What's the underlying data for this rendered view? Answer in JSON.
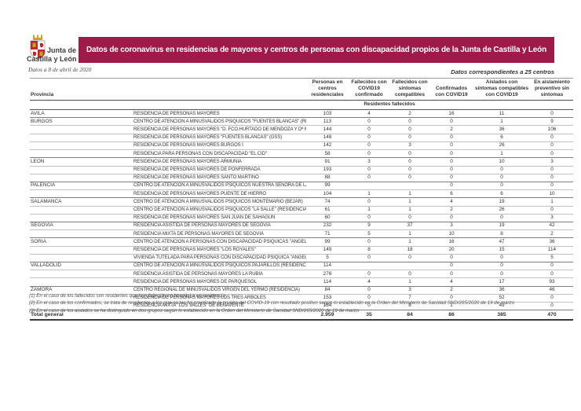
{
  "colors": {
    "banner_bg": "#9E1A49",
    "banner_text": "#FFFFFF",
    "crown_gold": "#C9A227",
    "shield_red": "#C0272D"
  },
  "header": {
    "logo_line1": "Junta de",
    "logo_line2": "Castilla y León",
    "banner": "Datos de coronavirus en residencias de mayores y centros de personas con discapacidad propios de la Junta de Castilla y León",
    "date_note": "Datos a 8 de abril de 2020",
    "centers_note": "Datos correspondientes a 25 centros"
  },
  "table": {
    "province_header": "Provincia",
    "columns": [
      "Personas en centros residenciales",
      "Fallecidos con COVID19 confirmado",
      "Fallecidos con síntomas compatibles",
      "Confirmados con COVID19",
      "Aislados con síntomas compatibles con COVID19",
      "En aislamiento preventivo sin síntomas"
    ],
    "subheader": "Residentes fallecidos",
    "groups": [
      {
        "province": "AVILA",
        "rows": [
          {
            "center": "RESIDENCIA DE PERSONAS MAYORES",
            "values": [
              "103",
              "4",
              "2",
              "16",
              "11",
              "0"
            ]
          }
        ]
      },
      {
        "province": "BURGOS",
        "rows": [
          {
            "center": "CENTRO DE ATENCION A MINUSVALIDOS PSIQUICOS \"FUENTES BLANCAS\" (RESIDENCIA)",
            "values": [
              "113",
              "0",
              "0",
              "0",
              "1",
              "9"
            ]
          },
          {
            "center": "RESIDENCIA DE PERSONAS MAYORES \"D. FCO.HURTADO DE MENDOZA Y Dª Mª MARDONES\"",
            "values": [
              "144",
              "0",
              "0",
              "2",
              "36",
              "106"
            ]
          },
          {
            "center": "RESIDENCIA DE PERSONAS MAYORES \"FUENTES BLANCAS\" (GSS)",
            "values": [
              "148",
              "0",
              "0",
              "0",
              "6",
              "0"
            ]
          },
          {
            "center": "RESIDENCIA DE PERSONAS MAYORES BURGOS I",
            "values": [
              "142",
              "0",
              "3",
              "0",
              "26",
              "0"
            ]
          },
          {
            "center": "RESIDENCIA PARA PERSONAS CON DISCAPACIDAD \"EL CID\"",
            "values": [
              "58",
              "0",
              "0",
              "0",
              "1",
              "0"
            ]
          }
        ]
      },
      {
        "province": "LEON",
        "rows": [
          {
            "center": "RESIDENCIA DE PERSONAS MAYORES ARMUNIA",
            "values": [
              "91",
              "3",
              "0",
              "0",
              "10",
              "3"
            ]
          },
          {
            "center": "RESIDENCIA DE PERSONAS MAYORES DE PONFERRADA",
            "values": [
              "193",
              "0",
              "0",
              "0",
              "0",
              "0"
            ]
          },
          {
            "center": "RESIDENCIA DE PERSONAS MAYORES SANTO MARTINO",
            "values": [
              "88",
              "0",
              "0",
              "0",
              "0",
              "0"
            ]
          }
        ]
      },
      {
        "province": "PALENCIA",
        "rows": [
          {
            "center": "CENTRO DE ATENCION A MINUSVALIDOS PSIQUICOS NUESTRA SEÑORA DE LA CALLE",
            "values": [
              "99",
              "",
              "",
              "0",
              "0",
              "0"
            ]
          },
          {
            "center": "RESIDENCIA DE PERSONAS MAYORES PUENTE DE HIERRO",
            "values": [
              "104",
              "1",
              "1",
              "6",
              "6",
              "10"
            ]
          }
        ]
      },
      {
        "province": "SALAMANCA",
        "rows": [
          {
            "center": "CENTRO DE ATENCION A MINUSVALIDOS PSIQUICOS MONTEMARIO (BEJAR)",
            "values": [
              "74",
              "0",
              "1",
              "4",
              "19",
              "1"
            ]
          },
          {
            "center": "CENTRO DE ATENCION A MINUSVALIDOS PSIQUICOS \"LA SALLE\" (RESIDENCIA)",
            "values": [
              "61",
              "1",
              "1",
              "2",
              "26",
              "0"
            ]
          },
          {
            "center": "RESIDENCIA DE PERSONAS MAYORES SAN JUAN DE SAHAGUN",
            "values": [
              "60",
              "0",
              "0",
              "0",
              "0",
              "3"
            ]
          }
        ]
      },
      {
        "province": "SEGOVIA",
        "rows": [
          {
            "center": "RESIDENCIA ASISTIDA DE PERSONAS MAYORES DE SEGOVIA",
            "values": [
              "232",
              "9",
              "37",
              "3",
              "19",
              "42"
            ]
          },
          {
            "center": "RESIDENCIA MIXTA DE PERSONAS MAYORES DE SEGOVIA",
            "values": [
              "71",
              "5",
              "1",
              "10",
              "8",
              "2"
            ]
          }
        ]
      },
      {
        "province": "SORIA",
        "rows": [
          {
            "center": "CENTRO DE ATENCION A PERSONAS CON DISCAPACIDAD PSIQUICAS \"ANGEL DE LA GUARDA\"",
            "values": [
              "99",
              "0",
              "1",
              "16",
              "47",
              "36"
            ]
          },
          {
            "center": "RESIDENCIA DE PERSONAS MAYORES \"LOS ROYALES\"",
            "values": [
              "149",
              "8",
              "18",
              "20",
              "15",
              "114"
            ]
          },
          {
            "center": "VIVIENDA TUTELADA PARA PERSONAS CON DISCAPACIDAD PSIQUICA \"ANGEL DE LA GUARDA\"",
            "values": [
              "5",
              "0",
              "0",
              "0",
              "0",
              "5"
            ]
          }
        ]
      },
      {
        "province": "VALLADOLID",
        "rows": [
          {
            "center": "CENTRO DE ATENCION A MINUSVALIDOS PSIQUICOS PAJARILLOS (RESIDENCIA)",
            "values": [
              "114",
              "",
              "",
              "0",
              "0",
              "0"
            ]
          },
          {
            "center": "RESIDENCIA ASISTIDA DE PERSONAS MAYORES LA RUBIA",
            "values": [
              "276",
              "0",
              "0",
              "0",
              "0",
              "0"
            ]
          },
          {
            "center": "RESIDENCIA DE PERSONAS MAYORES DE PARQUESOL",
            "values": [
              "114",
              "4",
              "1",
              "4",
              "17",
              "93"
            ]
          }
        ]
      },
      {
        "province": "ZAMORA",
        "rows": [
          {
            "center": "CENTRO REGIONAL DE MINUSVALIDOS VIRGEN DEL YERMO (RESIDENCIA)",
            "values": [
              "84",
              "0",
              "3",
              "2",
              "36",
              "46"
            ]
          },
          {
            "center": "RESIDENCIA DE PERSONAS MAYORES LOS TRES ARBOLES",
            "values": [
              "153",
              "0",
              "7",
              "0",
              "52",
              "0"
            ]
          },
          {
            "center": "RESIDENCIA MIXTA \"LOS VALLES\" DE BENAVENTE",
            "values": [
              "184",
              "0",
              "8",
              "1",
              "49",
              "0"
            ]
          }
        ]
      }
    ],
    "total": {
      "label": "Total general",
      "values": [
        "2.959",
        "35",
        "84",
        "86",
        "385",
        "470"
      ]
    }
  },
  "footnotes": [
    "(1) En el caso de los fallecidos son residentes que han fallecido en hospital o en residencia",
    "(2) En el caso de los confirmados, se trata de residentes a los que se les ha practicado la prueba del COVID-19 con resultado positivo según lo establecido en la Orden del Ministerio de Sanidad SND/265/2020 de 19 de marzo",
    "(3) En el caso de los aislados se ha distinguido en dos grupos según lo establecido en la Orden del Ministerio de Sanidad SND/265/2020 de 19 de marzo"
  ]
}
